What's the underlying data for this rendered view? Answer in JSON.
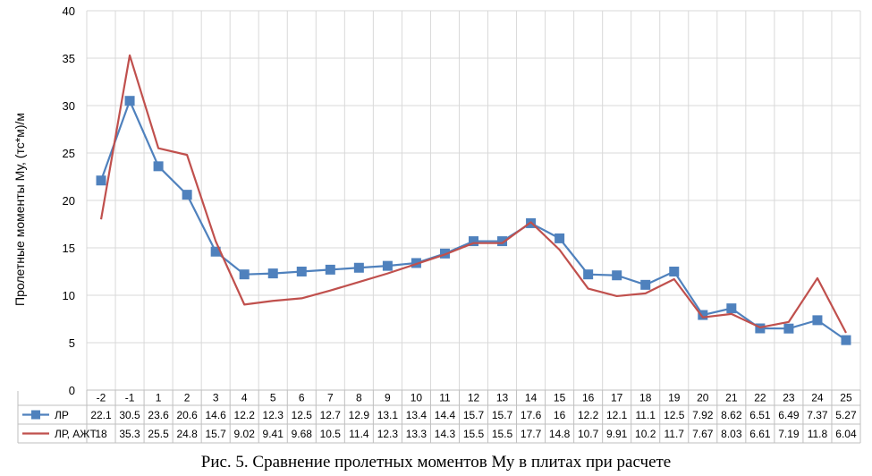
{
  "chart_data": {
    "type": "line",
    "title": "",
    "xlabel": "",
    "ylabel": "Пролетные моменты Му, (тс*м)/м",
    "ylim": [
      0,
      40
    ],
    "yticks": [
      0,
      5,
      10,
      15,
      20,
      25,
      30,
      35,
      40
    ],
    "grid": true,
    "legend": "table-bottom-left",
    "categories": [
      "-2",
      "-1",
      "1",
      "2",
      "3",
      "4",
      "5",
      "6",
      "7",
      "8",
      "9",
      "10",
      "11",
      "12",
      "13",
      "14",
      "15",
      "16",
      "17",
      "18",
      "19",
      "20",
      "21",
      "22",
      "23",
      "24",
      "25"
    ],
    "series": [
      {
        "name": "ЛР",
        "color": "#4f81bd",
        "marker": "square",
        "values": [
          22.1,
          30.5,
          23.6,
          20.6,
          14.6,
          12.2,
          12.3,
          12.5,
          12.7,
          12.9,
          13.1,
          13.4,
          14.4,
          15.7,
          15.7,
          17.6,
          16,
          12.2,
          12.1,
          11.1,
          12.5,
          7.92,
          8.62,
          6.51,
          6.49,
          7.37,
          5.27
        ]
      },
      {
        "name": "ЛР, АЖТ",
        "color": "#c0504d",
        "marker": "none",
        "values": [
          18,
          35.3,
          25.5,
          24.8,
          15.7,
          9.02,
          9.41,
          9.68,
          10.5,
          11.4,
          12.3,
          13.3,
          14.3,
          15.5,
          15.5,
          17.7,
          14.8,
          10.7,
          9.91,
          10.2,
          11.7,
          7.67,
          8.03,
          6.61,
          7.19,
          11.8,
          6.04
        ]
      }
    ]
  },
  "caption": "Рис. 5. Сравнение пролетных моментов Му в плитах при расчете"
}
